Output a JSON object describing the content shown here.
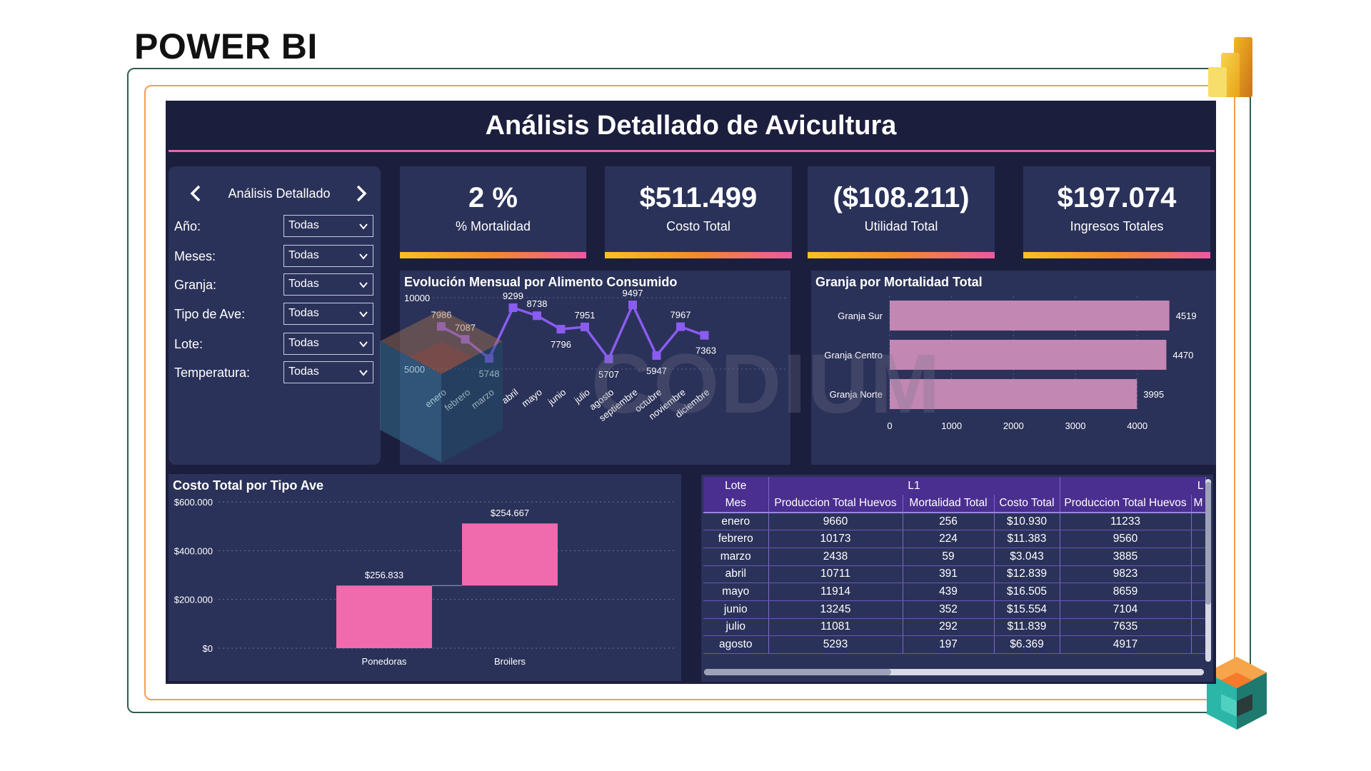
{
  "page": {
    "heading": "POWER BI"
  },
  "dashboard": {
    "title": "Análisis Detallado de Avicultura"
  },
  "nav": {
    "prev_icon": "chevron-left-icon",
    "next_icon": "chevron-right-icon",
    "label": "Análisis Detallado"
  },
  "filters": [
    {
      "label": "Año:",
      "value": "Todas"
    },
    {
      "label": "Meses:",
      "value": "Todas"
    },
    {
      "label": "Granja:",
      "value": "Todas"
    },
    {
      "label": "Tipo de Ave:",
      "value": "Todas"
    },
    {
      "label": "Lote:",
      "value": "Todas"
    },
    {
      "label": "Temperatura:",
      "value": "Todas"
    }
  ],
  "kpis": [
    {
      "value": "2 %",
      "label": "% Mortalidad"
    },
    {
      "value": "$511.499",
      "label": "Costo Total"
    },
    {
      "value": "($108.211)",
      "label": "Utilidad Total"
    },
    {
      "value": "$197.074",
      "label": "Ingresos Totales"
    }
  ],
  "colors": {
    "background": "#1b1e3d",
    "panel": "#2b3259",
    "accent_pink": "#e56aa6",
    "line_purple": "#8a5cf0",
    "bar_pink": "#c387b4",
    "waterfall_pink": "#f06aae",
    "table_header": "#4a2f90"
  },
  "watermark": {
    "text": "CODIUM"
  },
  "chart_data": [
    {
      "type": "line",
      "title": "Evolución Mensual por Alimento Consumido",
      "categories": [
        "enero",
        "febrero",
        "marzo",
        "abril",
        "mayo",
        "junio",
        "julio",
        "agosto",
        "septiembre",
        "octubre",
        "noviembre",
        "diciembre"
      ],
      "values": [
        7986,
        7087,
        5748,
        9299,
        8738,
        7796,
        7951,
        5707,
        9497,
        5947,
        7967,
        7363
      ],
      "ylim": [
        5000,
        10000
      ],
      "yticks": [
        5000,
        10000
      ],
      "grid": true
    },
    {
      "type": "bar",
      "orientation": "horizontal",
      "title": "Granja por Mortalidad Total",
      "categories": [
        "Granja Sur",
        "Granja Centro",
        "Granja Norte"
      ],
      "values": [
        4519,
        4470,
        3995
      ],
      "xlim": [
        0,
        4500
      ],
      "xticks": [
        0,
        1000,
        2000,
        3000,
        4000
      ]
    },
    {
      "type": "waterfall",
      "title": "Costo Total por Tipo Ave",
      "categories": [
        "Ponedoras",
        "Broilers"
      ],
      "values": [
        256833,
        254667
      ],
      "value_labels": [
        "$256.833",
        "$254.667"
      ],
      "ylim": [
        0,
        600000
      ],
      "yticks": [
        "$0",
        "$200.000",
        "$400.000",
        "$600.000"
      ],
      "ytick_values": [
        0,
        200000,
        400000,
        600000
      ],
      "grid": true
    },
    {
      "type": "table",
      "row_header": "Lote",
      "row_subheader": "Mes",
      "groups": [
        "L1",
        "L"
      ],
      "columns": [
        "Produccion Total Huevos",
        "Mortalidad Total",
        "Costo Total",
        "Produccion Total Huevos",
        "M"
      ],
      "rows": [
        {
          "mes": "enero",
          "cells": [
            "9660",
            "256",
            "$10.930",
            "11233",
            ""
          ]
        },
        {
          "mes": "febrero",
          "cells": [
            "10173",
            "224",
            "$11.383",
            "9560",
            ""
          ]
        },
        {
          "mes": "marzo",
          "cells": [
            "2438",
            "59",
            "$3.043",
            "3885",
            ""
          ]
        },
        {
          "mes": "abril",
          "cells": [
            "10711",
            "391",
            "$12.839",
            "9823",
            ""
          ]
        },
        {
          "mes": "mayo",
          "cells": [
            "11914",
            "439",
            "$16.505",
            "8659",
            ""
          ]
        },
        {
          "mes": "junio",
          "cells": [
            "13245",
            "352",
            "$15.554",
            "7104",
            ""
          ]
        },
        {
          "mes": "julio",
          "cells": [
            "11081",
            "292",
            "$11.839",
            "7635",
            ""
          ]
        },
        {
          "mes": "agosto",
          "cells": [
            "5293",
            "197",
            "$6.369",
            "4917",
            ""
          ]
        }
      ]
    }
  ]
}
